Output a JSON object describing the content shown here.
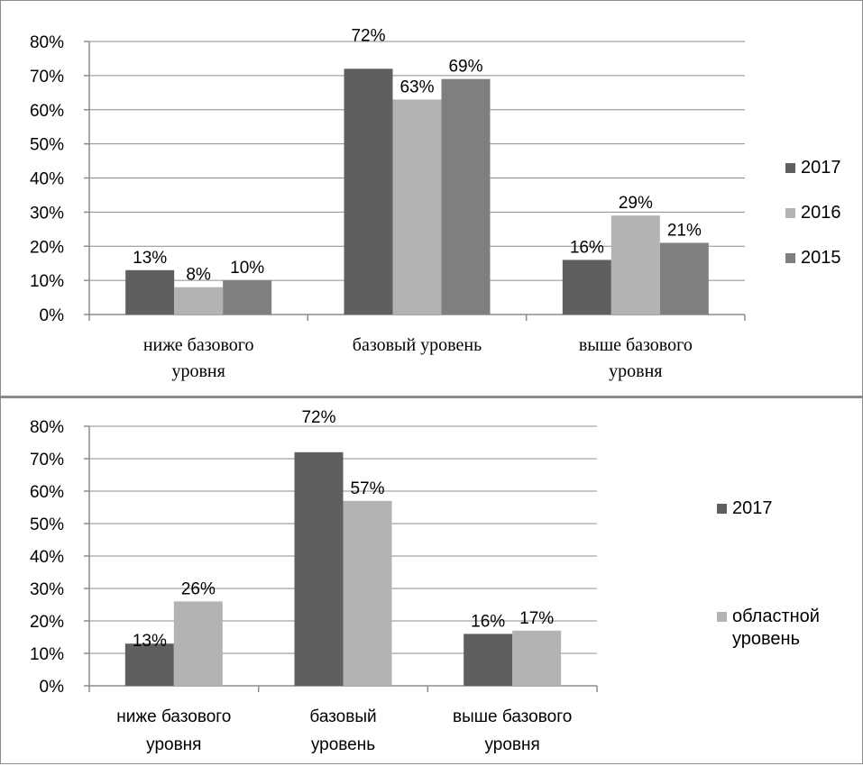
{
  "chart_data": [
    {
      "type": "bar",
      "categories": [
        [
          "ниже базового",
          "уровня"
        ],
        [
          "базовый уровень"
        ],
        [
          "выше базового",
          "уровня"
        ]
      ],
      "series": [
        {
          "name": "2017",
          "values": [
            13,
            72,
            16
          ],
          "labels": [
            "13%",
            "72%",
            "16%"
          ],
          "color": "#5f5f5f"
        },
        {
          "name": "2016",
          "values": [
            8,
            63,
            29
          ],
          "labels": [
            "8%",
            "63%",
            "29%"
          ],
          "color": "#b3b3b3"
        },
        {
          "name": "2015",
          "values": [
            10,
            69,
            21
          ],
          "labels": [
            "10%",
            "69%",
            "21%"
          ],
          "color": "#7f7f7f"
        }
      ],
      "yticks": [
        "0%",
        "10%",
        "20%",
        "30%",
        "40%",
        "50%",
        "60%",
        "70%",
        "80%"
      ],
      "ylim": [
        0,
        80
      ],
      "grid": true,
      "legend": "right"
    },
    {
      "type": "bar",
      "categories": [
        [
          "ниже базового",
          "уровня"
        ],
        [
          "базовый",
          "уровень"
        ],
        [
          "выше базового",
          "уровня"
        ]
      ],
      "series": [
        {
          "name": "2017",
          "values": [
            13,
            72,
            16
          ],
          "labels": [
            "13%",
            "72%",
            "16%"
          ],
          "color": "#5f5f5f"
        },
        {
          "name": "областной уровень",
          "name_lines": [
            "областной",
            "уровень"
          ],
          "values": [
            26,
            57,
            17
          ],
          "labels": [
            "26%",
            "57%",
            "17%"
          ],
          "color": "#b3b3b3"
        }
      ],
      "yticks": [
        "0%",
        "10%",
        "20%",
        "30%",
        "40%",
        "50%",
        "60%",
        "70%",
        "80%"
      ],
      "ylim": [
        0,
        80
      ],
      "grid": true,
      "legend": "right"
    }
  ]
}
